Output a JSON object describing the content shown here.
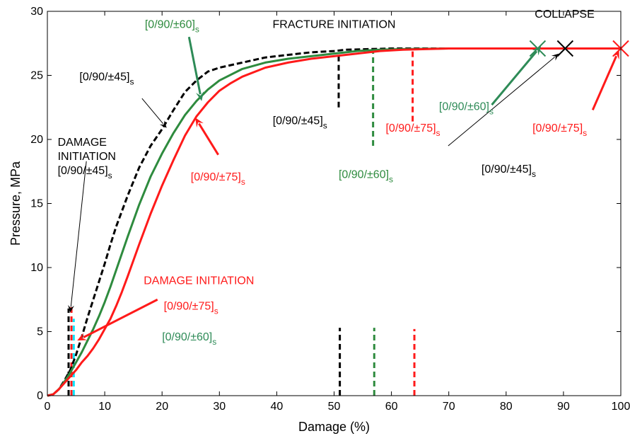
{
  "chart_data": {
    "type": "line",
    "xlabel": "Damage (%)",
    "ylabel": "Pressure, MPa",
    "xlim": [
      0,
      100
    ],
    "ylim": [
      0,
      30
    ],
    "xticks": [
      0,
      10,
      20,
      30,
      40,
      50,
      60,
      70,
      80,
      90,
      100
    ],
    "yticks": [
      0,
      5,
      10,
      15,
      20,
      25,
      30
    ],
    "grid": false,
    "colors": {
      "black": "#000000",
      "green": "#2e8b3e",
      "red": "#ff1a1a",
      "teal": "#2e8b57",
      "cyan": "#00e5ff"
    },
    "series": [
      {
        "name": "[0/90/±45]s",
        "color": "#000000",
        "dash": true,
        "x": [
          0,
          1,
          2,
          3,
          4,
          5,
          6,
          7,
          8,
          9,
          10,
          11,
          12,
          14,
          16,
          18,
          20,
          22,
          24,
          26,
          28,
          30,
          34,
          38,
          42,
          46,
          50,
          52,
          56,
          60,
          70,
          80,
          90
        ],
        "y": [
          0,
          0.1,
          0.5,
          1.2,
          2.0,
          3.2,
          4.6,
          6.1,
          7.5,
          8.9,
          10.3,
          11.8,
          13.2,
          15.6,
          17.8,
          19.5,
          20.8,
          22.3,
          23.7,
          24.6,
          25.3,
          25.6,
          26.0,
          26.4,
          26.6,
          26.8,
          26.9,
          27.0,
          27.05,
          27.1,
          27.1,
          27.1,
          27.1
        ]
      },
      {
        "name": "[0/90/±60]s",
        "color": "#2e8b3e",
        "dash": false,
        "x": [
          0,
          1,
          2,
          3,
          4,
          5,
          6,
          7,
          8,
          9,
          10,
          11,
          12,
          14,
          16,
          18,
          20,
          22,
          24,
          26,
          28,
          30,
          34,
          38,
          42,
          46,
          50,
          54,
          58,
          62,
          70,
          80,
          86
        ],
        "y": [
          0,
          0.1,
          0.5,
          1.1,
          1.8,
          2.6,
          3.4,
          4.3,
          5.2,
          6.2,
          7.3,
          8.5,
          9.8,
          12.4,
          14.9,
          17.1,
          18.9,
          20.5,
          21.9,
          23.0,
          23.9,
          24.6,
          25.5,
          26.0,
          26.3,
          26.5,
          26.7,
          26.9,
          27.0,
          27.05,
          27.1,
          27.1,
          27.1
        ]
      },
      {
        "name": "[0/90/±75]s",
        "color": "#ff1a1a",
        "dash": false,
        "x": [
          0,
          1,
          2,
          3,
          4,
          5,
          6,
          7,
          8,
          9,
          10,
          11,
          12,
          13,
          14,
          16,
          18,
          20,
          22,
          24,
          26,
          28,
          30,
          32,
          34,
          38,
          42,
          46,
          50,
          54,
          58,
          62,
          66,
          70,
          80,
          90,
          100
        ],
        "y": [
          0,
          0.1,
          0.5,
          1.0,
          1.5,
          2.0,
          2.6,
          3.1,
          3.7,
          4.4,
          5.2,
          6.0,
          7.0,
          8.1,
          9.3,
          11.8,
          14.2,
          16.4,
          18.4,
          20.3,
          21.8,
          22.9,
          23.8,
          24.4,
          24.9,
          25.6,
          26.0,
          26.3,
          26.5,
          26.7,
          26.9,
          27.0,
          27.05,
          27.1,
          27.1,
          27.1,
          27.1
        ]
      }
    ],
    "vertical_markers": [
      {
        "x": 3.7,
        "y0": 0,
        "y1": 6.8,
        "color": "#000000",
        "dash": true
      },
      {
        "x": 4.2,
        "y0": 0,
        "y1": 7.0,
        "color": "#ff1a1a",
        "dash": true
      },
      {
        "x": 4.6,
        "y0": 0,
        "y1": 6.0,
        "color": "#00e5ff",
        "dash": true
      },
      {
        "x": 51,
        "y0": 0,
        "y1": 5.3,
        "color": "#000000",
        "dash": true
      },
      {
        "x": 57,
        "y0": 0,
        "y1": 5.3,
        "color": "#2e8b3e",
        "dash": true
      },
      {
        "x": 64,
        "y0": 0,
        "y1": 5.2,
        "color": "#ff1a1a",
        "dash": true
      },
      {
        "x": 50.8,
        "y0": 22.5,
        "y1": 26.8,
        "color": "#000000",
        "dash": true
      },
      {
        "x": 56.8,
        "y0": 19.5,
        "y1": 27.0,
        "color": "#2e8b3e",
        "dash": true
      },
      {
        "x": 63.7,
        "y0": 21.4,
        "y1": 27.1,
        "color": "#ff1a1a",
        "dash": true
      }
    ],
    "collapse_markers": [
      {
        "x": 85.5,
        "y": 27.1,
        "color": "#2e8b57"
      },
      {
        "x": 90.3,
        "y": 27.1,
        "color": "#000000"
      },
      {
        "x": 100,
        "y": 27.1,
        "color": "#ff1a1a"
      }
    ],
    "arrows": [
      {
        "x0": 16.5,
        "y0": 23.2,
        "x1": 20.8,
        "y1": 20.9,
        "color": "#000000",
        "width": 1
      },
      {
        "x0": 24.7,
        "y0": 28.0,
        "x1": 26.9,
        "y1": 23.0,
        "color": "#2e8b57",
        "width": 3
      },
      {
        "x0": 29.8,
        "y0": 18.8,
        "x1": 25.8,
        "y1": 21.7,
        "color": "#ff1a1a",
        "width": 3
      },
      {
        "x0": 6.8,
        "y0": 18.3,
        "x1": 4.0,
        "y1": 6.5,
        "color": "#000000",
        "width": 1
      },
      {
        "x0": 19.2,
        "y0": 7.5,
        "x1": 5.2,
        "y1": 4.3,
        "color": "#ff1a1a",
        "width": 3
      },
      {
        "x0": 77.5,
        "y0": 22.7,
        "x1": 86.1,
        "y1": 27.3,
        "color": "#2e8b57",
        "width": 3
      },
      {
        "x0": 69.9,
        "y0": 19.5,
        "x1": 89.2,
        "y1": 26.7,
        "color": "#000000",
        "width": 1
      },
      {
        "x0": 95.1,
        "y0": 22.3,
        "x1": 99.7,
        "y1": 27.0,
        "color": "#ff1a1a",
        "width": 3
      }
    ],
    "annotations": [
      {
        "id": "fracture-initiation-title",
        "lines": [
          {
            "text": "FRACTURE INITIATION"
          }
        ],
        "x": 50,
        "y": 28.7,
        "anchor": "middle",
        "color": "#000000"
      },
      {
        "id": "collapse-title",
        "lines": [
          {
            "text": "COLLAPSE"
          }
        ],
        "x": 90.2,
        "y": 29.5,
        "anchor": "middle",
        "color": "#000000"
      },
      {
        "id": "label-45-upper",
        "lines": [
          {
            "text": "[0/90/±45]",
            "sub": "s"
          }
        ],
        "x": 5.6,
        "y": 24.6,
        "anchor": "start",
        "color": "#000000"
      },
      {
        "id": "label-60-upper",
        "lines": [
          {
            "text": "[0/90/±60]",
            "sub": "s"
          }
        ],
        "x": 17.0,
        "y": 28.7,
        "anchor": "start",
        "color": "#2e8b3e"
      },
      {
        "id": "label-75-mid",
        "lines": [
          {
            "text": "[0/90/±75]",
            "sub": "s"
          }
        ],
        "x": 25.0,
        "y": 16.8,
        "anchor": "start",
        "color": "#ff1a1a"
      },
      {
        "id": "label-45-fracture",
        "lines": [
          {
            "text": "[0/90/±45]",
            "sub": "s"
          }
        ],
        "x": 39.3,
        "y": 21.2,
        "anchor": "start",
        "color": "#000000"
      },
      {
        "id": "label-60-fracture",
        "lines": [
          {
            "text": "[0/90/±60]",
            "sub": "s"
          }
        ],
        "x": 50.8,
        "y": 17.0,
        "anchor": "start",
        "color": "#2e8b3e"
      },
      {
        "id": "label-75-fracture",
        "lines": [
          {
            "text": "[0/90/±75]",
            "sub": "s"
          }
        ],
        "x": 59.0,
        "y": 20.6,
        "anchor": "start",
        "color": "#ff1a1a"
      },
      {
        "id": "label-60-collapse",
        "lines": [
          {
            "text": "[0/90/±60]",
            "sub": "s"
          }
        ],
        "x": 68.3,
        "y": 22.3,
        "anchor": "start",
        "color": "#2e8b57"
      },
      {
        "id": "label-75-collapse",
        "lines": [
          {
            "text": "[0/90/±75]",
            "sub": "s"
          }
        ],
        "x": 84.6,
        "y": 20.6,
        "anchor": "start",
        "color": "#ff1a1a"
      },
      {
        "id": "label-45-collapse",
        "lines": [
          {
            "text": "[0/90/±45]",
            "sub": "s"
          }
        ],
        "x": 75.7,
        "y": 17.4,
        "anchor": "start",
        "color": "#000000"
      },
      {
        "id": "damage-initiation-black",
        "lines": [
          {
            "text": "DAMAGE"
          },
          {
            "text": "INITIATION"
          },
          {
            "text": "[0/90/±45]",
            "sub": "s"
          }
        ],
        "x": 1.8,
        "y": 19.5,
        "anchor": "start",
        "color": "#000000"
      },
      {
        "id": "damage-initiation-red",
        "lines": [
          {
            "text": "DAMAGE INITIATION"
          }
        ],
        "x": 16.8,
        "y": 8.7,
        "anchor": "start",
        "color": "#ff1a1a"
      },
      {
        "id": "label-75-damage",
        "lines": [
          {
            "text": "[0/90/±75]",
            "sub": "s"
          }
        ],
        "x": 20.3,
        "y": 6.7,
        "anchor": "start",
        "color": "#ff1a1a"
      },
      {
        "id": "label-60-damage",
        "lines": [
          {
            "text": "[0/90/±60]",
            "sub": "s"
          }
        ],
        "x": 20.0,
        "y": 4.3,
        "anchor": "start",
        "color": "#2e8b57"
      }
    ]
  }
}
